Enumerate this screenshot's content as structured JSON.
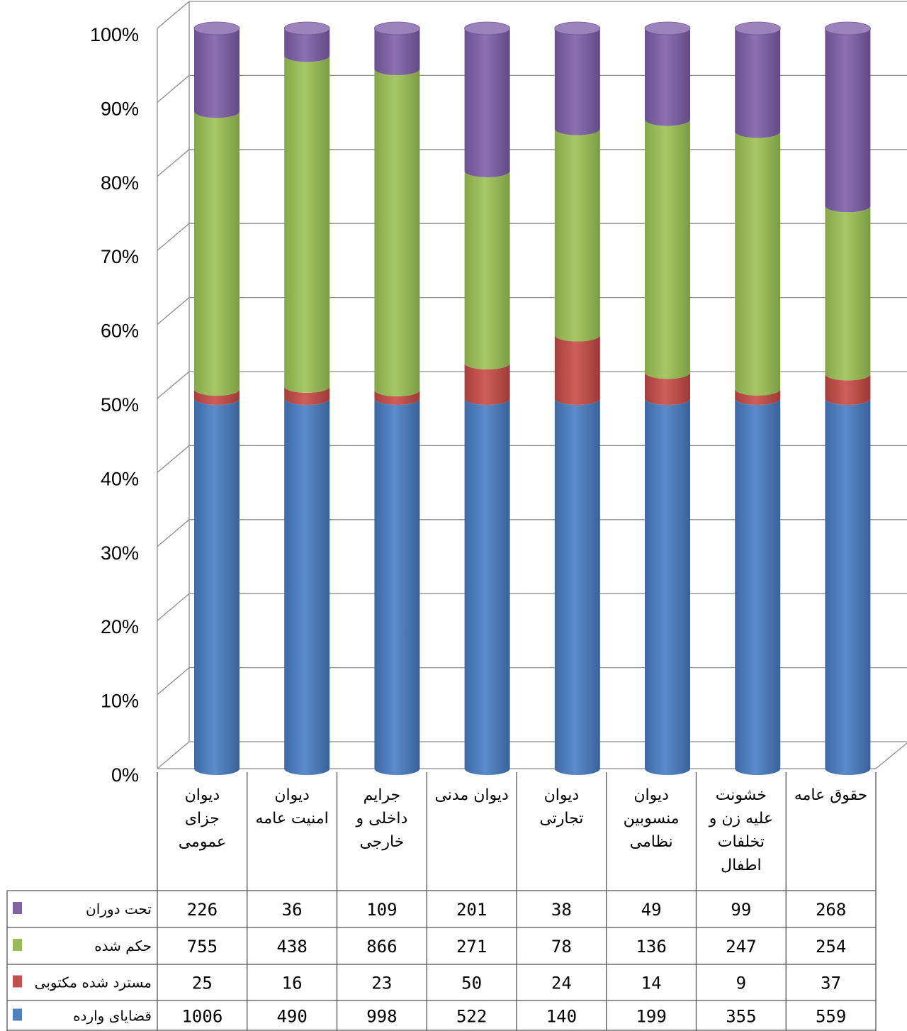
{
  "chart_data": {
    "type": "bar",
    "stacked": "percent",
    "y_ticks": [
      "0%",
      "10%",
      "20%",
      "30%",
      "40%",
      "50%",
      "60%",
      "70%",
      "80%",
      "90%",
      "100%"
    ],
    "ylim": [
      0,
      100
    ],
    "grid": true,
    "legend": "left-table",
    "categories": [
      [
        "دیوان",
        "جزای",
        "عمومی"
      ],
      [
        "دیوان",
        "امنیت عامه"
      ],
      [
        "جرایم",
        "داخلی و",
        "خارجی"
      ],
      [
        "دیوان مدنی"
      ],
      [
        "دیوان",
        "تجارتی"
      ],
      [
        "دیوان",
        "منسوبین",
        "نظامی"
      ],
      [
        "خشونت",
        "علیه زن و",
        "تخلفات",
        "اطفال"
      ],
      [
        "حقوق عامه"
      ]
    ],
    "series": [
      {
        "name": "قضایای وارده",
        "color": "#4f81bd",
        "values": [
          1006,
          490,
          998,
          522,
          140,
          199,
          355,
          559
        ]
      },
      {
        "name": "مسترد شده مکتوبی",
        "color": "#c0504d",
        "values": [
          25,
          16,
          23,
          50,
          24,
          14,
          9,
          37
        ]
      },
      {
        "name": "حکم شده",
        "color": "#9bbb59",
        "values": [
          755,
          438,
          866,
          271,
          78,
          136,
          247,
          254
        ]
      },
      {
        "name": "تحت دوران",
        "color": "#8064a2",
        "values": [
          226,
          36,
          109,
          201,
          38,
          49,
          99,
          268
        ]
      }
    ],
    "table_row_order": [
      3,
      2,
      1,
      0
    ]
  }
}
